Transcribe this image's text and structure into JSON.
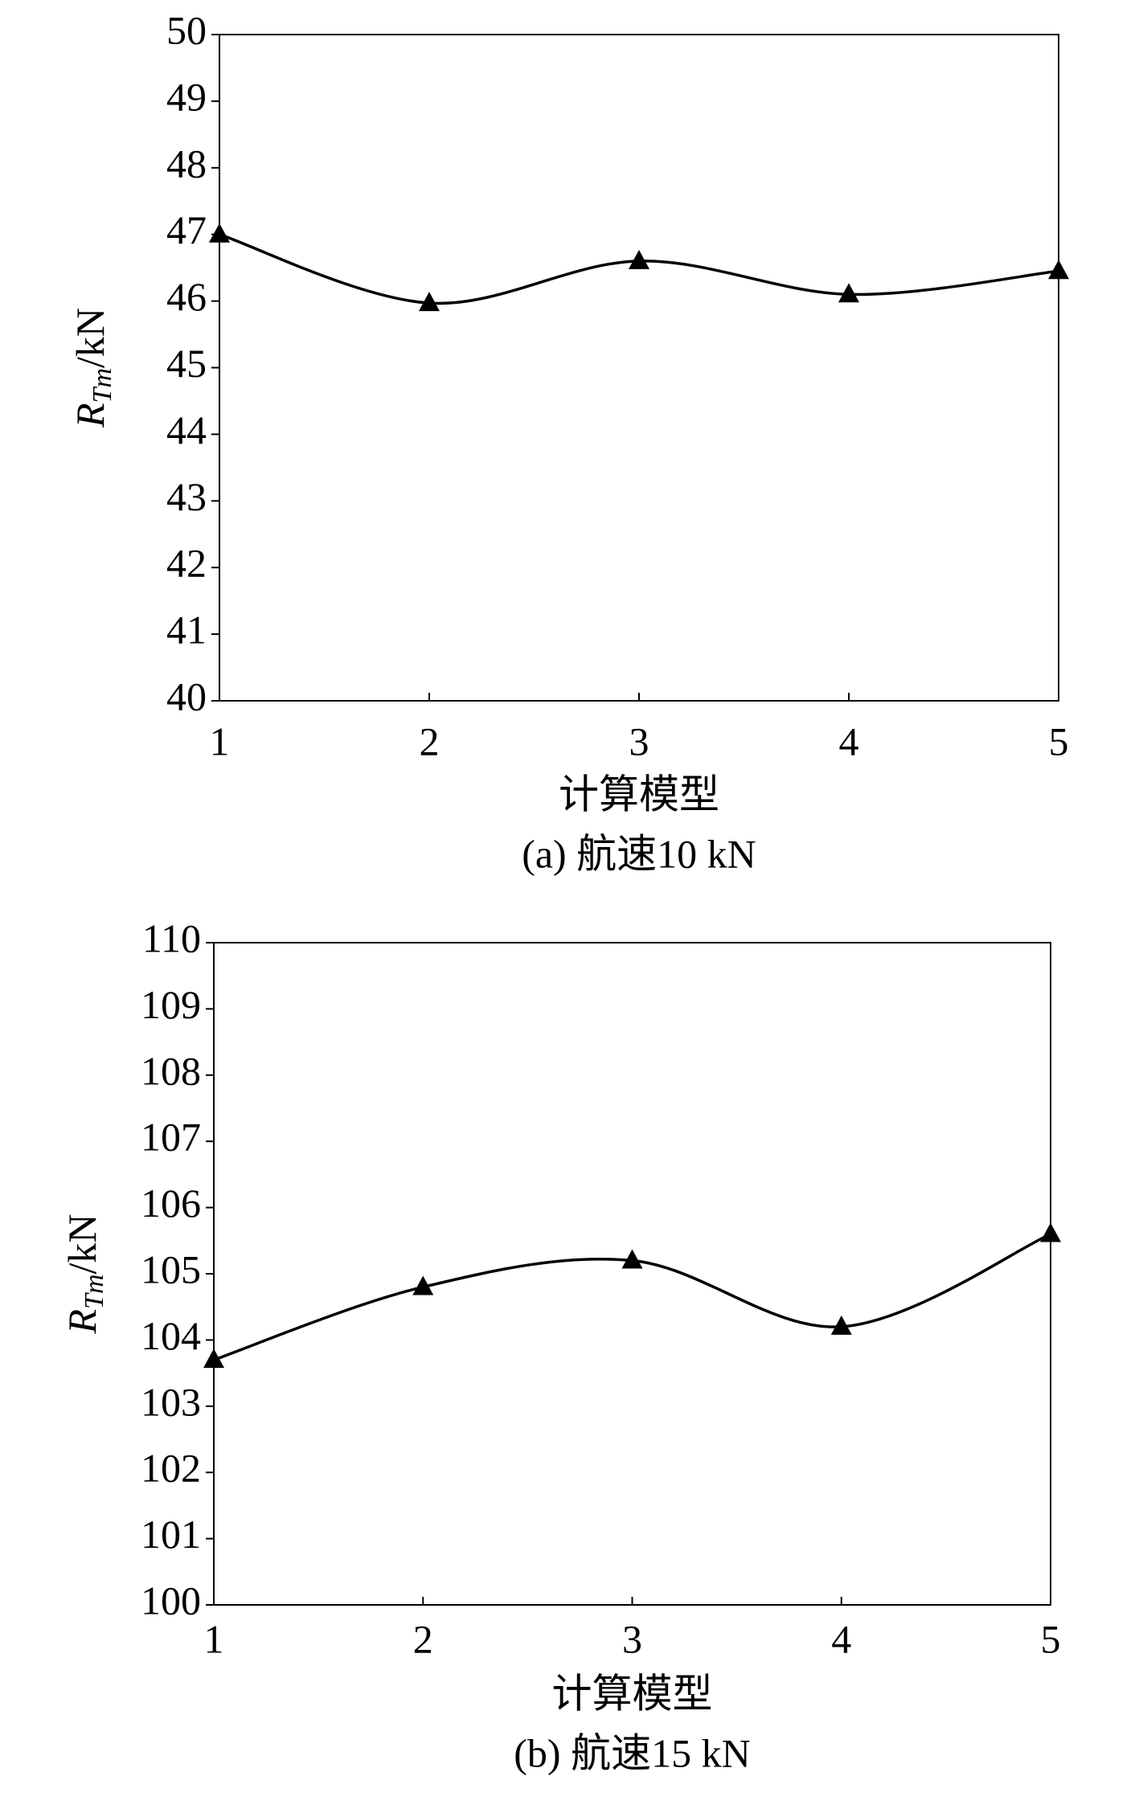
{
  "chart_data": [
    {
      "type": "line",
      "caption": "(a) 航速10 kN",
      "xlabel": "计算模型",
      "ylabel_symbol": "R",
      "ylabel_subscript": "Tm",
      "ylabel_unit": "/kN",
      "x": [
        1,
        2,
        3,
        4,
        5
      ],
      "series": [
        {
          "color": "#000000",
          "values": [
            47.0,
            45.97,
            46.6,
            46.1,
            46.45
          ]
        }
      ],
      "xlim": [
        1,
        5
      ],
      "xticks": [
        1,
        2,
        3,
        4,
        5
      ],
      "ylim": [
        40,
        50
      ],
      "yticks": [
        40,
        41,
        42,
        43,
        44,
        45,
        46,
        47,
        48,
        49,
        50
      ]
    },
    {
      "type": "line",
      "caption": "(b) 航速15 kN",
      "xlabel": "计算模型",
      "ylabel_symbol": "R",
      "ylabel_subscript": "Tm",
      "ylabel_unit": "/kN",
      "x": [
        1,
        2,
        3,
        4,
        5
      ],
      "series": [
        {
          "color": "#000000",
          "values": [
            103.7,
            104.8,
            105.2,
            104.2,
            105.6
          ]
        }
      ],
      "xlim": [
        1,
        5
      ],
      "xticks": [
        1,
        2,
        3,
        4,
        5
      ],
      "ylim": [
        100,
        110
      ],
      "yticks": [
        100,
        101,
        102,
        103,
        104,
        105,
        106,
        107,
        108,
        109,
        110
      ]
    }
  ]
}
